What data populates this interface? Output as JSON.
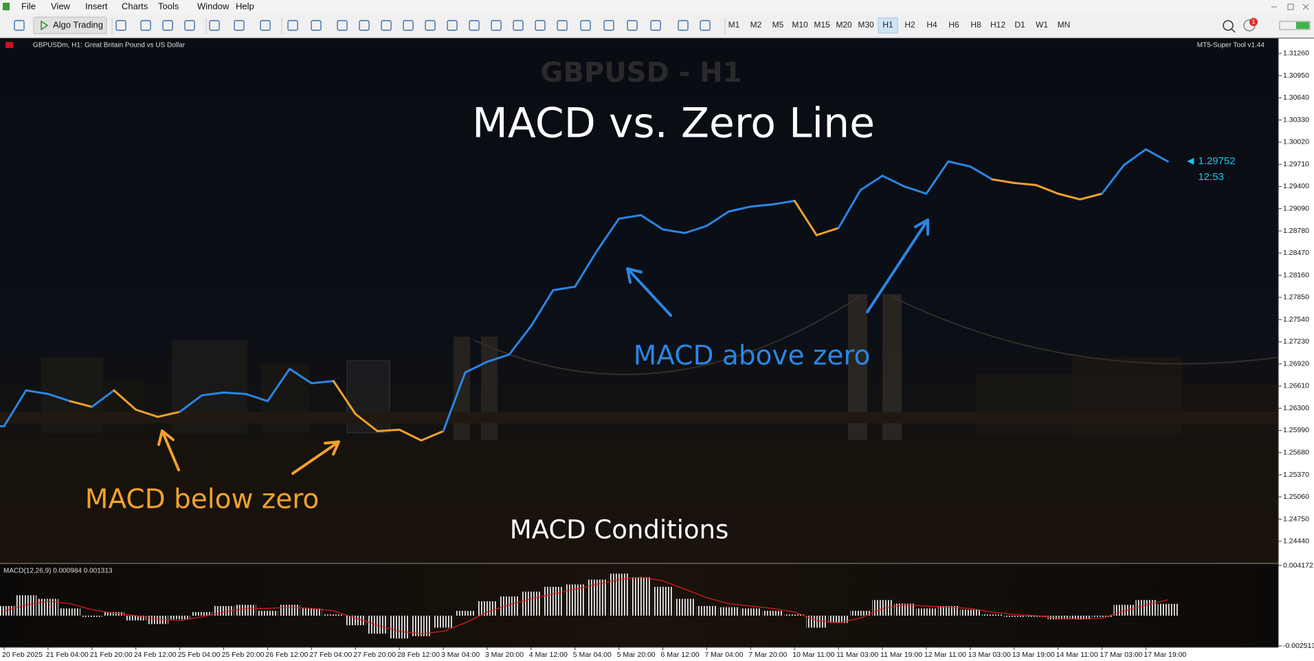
{
  "menu": [
    "File",
    "View",
    "Insert",
    "Charts",
    "Tools",
    "Window",
    "Help"
  ],
  "toolbar": {
    "algo_trading": "Algo Trading",
    "timeframes": [
      "M1",
      "M2",
      "M5",
      "M10",
      "M15",
      "M20",
      "M30",
      "H1",
      "H2",
      "H4",
      "H6",
      "H8",
      "H12",
      "D1",
      "W1",
      "MN"
    ],
    "active_timeframe_index": 7,
    "notifications": 1
  },
  "chart_header": {
    "symbol": "GBPUSDm, H1:",
    "description": "Great Britain Pound vs US Dollar",
    "tool": "MT5-Super Tool v1.44"
  },
  "chart_data": {
    "type": "price-line",
    "subtitle": "GBPUSD - H1",
    "title": "MACD vs. Zero Line",
    "annotations": [
      "MACD above zero",
      "MACD below zero"
    ],
    "footer": "MACD Conditions",
    "colors": {
      "above": "#2a86e4",
      "below": "#f2a22a",
      "signal": "#d81e1e",
      "histogram": "#ffffff"
    },
    "values": [
      1.2605,
      1.2655,
      1.265,
      1.264,
      1.2632,
      1.2655,
      1.2628,
      1.2618,
      1.2625,
      1.2648,
      1.2652,
      1.265,
      1.264,
      1.2685,
      1.2665,
      1.2668,
      1.2622,
      1.2598,
      1.26,
      1.2585,
      1.2598,
      1.268,
      1.2695,
      1.2705,
      1.2745,
      1.2795,
      1.28,
      1.285,
      1.2895,
      1.29,
      1.288,
      1.2875,
      1.2885,
      1.2905,
      1.2912,
      1.2915,
      1.292,
      1.2872,
      1.2882,
      1.2935,
      1.2955,
      1.294,
      1.293,
      1.2975,
      1.2968,
      1.295,
      1.2945,
      1.2942,
      1.293,
      1.2922,
      1.293,
      1.297,
      1.2992,
      1.2975
    ],
    "current_price": 1.29752,
    "current_time": "12:53",
    "ylim": [
      1.2415,
      1.3146
    ],
    "yticks": [
      {
        "value": 1.3126,
        "label": "1.31260"
      },
      {
        "value": 1.3095,
        "label": "1.30950"
      },
      {
        "value": 1.3064,
        "label": "1.30640"
      },
      {
        "value": 1.3033,
        "label": "1.30330"
      },
      {
        "value": 1.3002,
        "label": "1.30020"
      },
      {
        "value": 1.2971,
        "label": "1.29710"
      },
      {
        "value": 1.294,
        "label": "1.29400"
      },
      {
        "value": 1.2909,
        "label": "1.29090"
      },
      {
        "value": 1.2878,
        "label": "1.28780"
      },
      {
        "value": 1.2847,
        "label": "1.28470"
      },
      {
        "value": 1.2816,
        "label": "1.28160"
      },
      {
        "value": 1.2785,
        "label": "1.27850"
      },
      {
        "value": 1.2754,
        "label": "1.27540"
      },
      {
        "value": 1.2723,
        "label": "1.27230"
      },
      {
        "value": 1.2692,
        "label": "1.26920"
      },
      {
        "value": 1.2661,
        "label": "1.26610"
      },
      {
        "value": 1.263,
        "label": "1.26300"
      },
      {
        "value": 1.2599,
        "label": "1.25990"
      },
      {
        "value": 1.2568,
        "label": "1.25680"
      },
      {
        "value": 1.2537,
        "label": "1.25370"
      },
      {
        "value": 1.2506,
        "label": "1.25060"
      },
      {
        "value": 1.2475,
        "label": "1.24750"
      },
      {
        "value": 1.2444,
        "label": "1.24440"
      }
    ],
    "indicator": {
      "label": "MACD(12,26,9) 0.000984 0.001313",
      "values": [
        0.0008,
        0.0017,
        0.0014,
        0.0006,
        -0.0001,
        0.0003,
        -0.0004,
        -0.0007,
        -0.0003,
        0.0003,
        0.0008,
        0.0009,
        0.0004,
        0.0009,
        0.0006,
        0.0001,
        -0.0008,
        -0.0015,
        -0.0019,
        -0.0017,
        -0.001,
        0.0004,
        0.0012,
        0.0016,
        0.002,
        0.0024,
        0.0026,
        0.003,
        0.0035,
        0.0032,
        0.0024,
        0.0014,
        0.0008,
        0.0007,
        0.0006,
        0.0004,
        0.0001,
        -0.001,
        -0.0006,
        0.0004,
        0.0013,
        0.001,
        0.0006,
        0.0008,
        0.0005,
        0.0001,
        -0.0001,
        -0.0001,
        -0.0003,
        -0.0003,
        -0.0001,
        0.0009,
        0.0013,
        0.000984
      ],
      "signal": [
        0.0004,
        0.0009,
        0.0012,
        0.001,
        0.0005,
        0.0002,
        0,
        -0.0003,
        -0.0004,
        -0.0001,
        0.0003,
        0.0006,
        0.0006,
        0.0007,
        0.0006,
        0.0004,
        -0.0002,
        -0.0008,
        -0.0013,
        -0.0015,
        -0.0013,
        -0.0006,
        0.0003,
        0.0009,
        0.0014,
        0.0018,
        0.0022,
        0.0026,
        0.003,
        0.0032,
        0.0029,
        0.0022,
        0.0015,
        0.001,
        0.0008,
        0.0006,
        0.0003,
        -0.0004,
        -0.0006,
        -0.0002,
        0.0006,
        0.0009,
        0.0008,
        0.0007,
        0.0006,
        0.0003,
        0.0001,
        0,
        -0.0002,
        -0.0003,
        -0.0002,
        0.0004,
        0.0009,
        0.001313
      ],
      "ylim": [
        -0.002513,
        0.004172
      ],
      "yticks": [
        0.004172,
        -0.002513
      ]
    },
    "time_labels": [
      "20 Feb 2025",
      "21 Feb 04:00",
      "21 Feb 20:00",
      "24 Feb 12:00",
      "25 Feb 04:00",
      "25 Feb 20:00",
      "26 Feb 12:00",
      "27 Feb 04:00",
      "27 Feb 20:00",
      "28 Feb 12:00",
      "3 Mar 04:00",
      "3 Mar 20:00",
      "4 Mar 12:00",
      "5 Mar 04:00",
      "5 Mar 20:00",
      "6 Mar 12:00",
      "7 Mar 04:00",
      "7 Mar 20:00",
      "10 Mar 11:00",
      "11 Mar 03:00",
      "11 Mar 19:00",
      "12 Mar 11:00",
      "13 Mar 03:00",
      "13 Mar 19:00",
      "14 Mar 11:00",
      "17 Mar 03:00",
      "17 Mar 19:00"
    ]
  }
}
